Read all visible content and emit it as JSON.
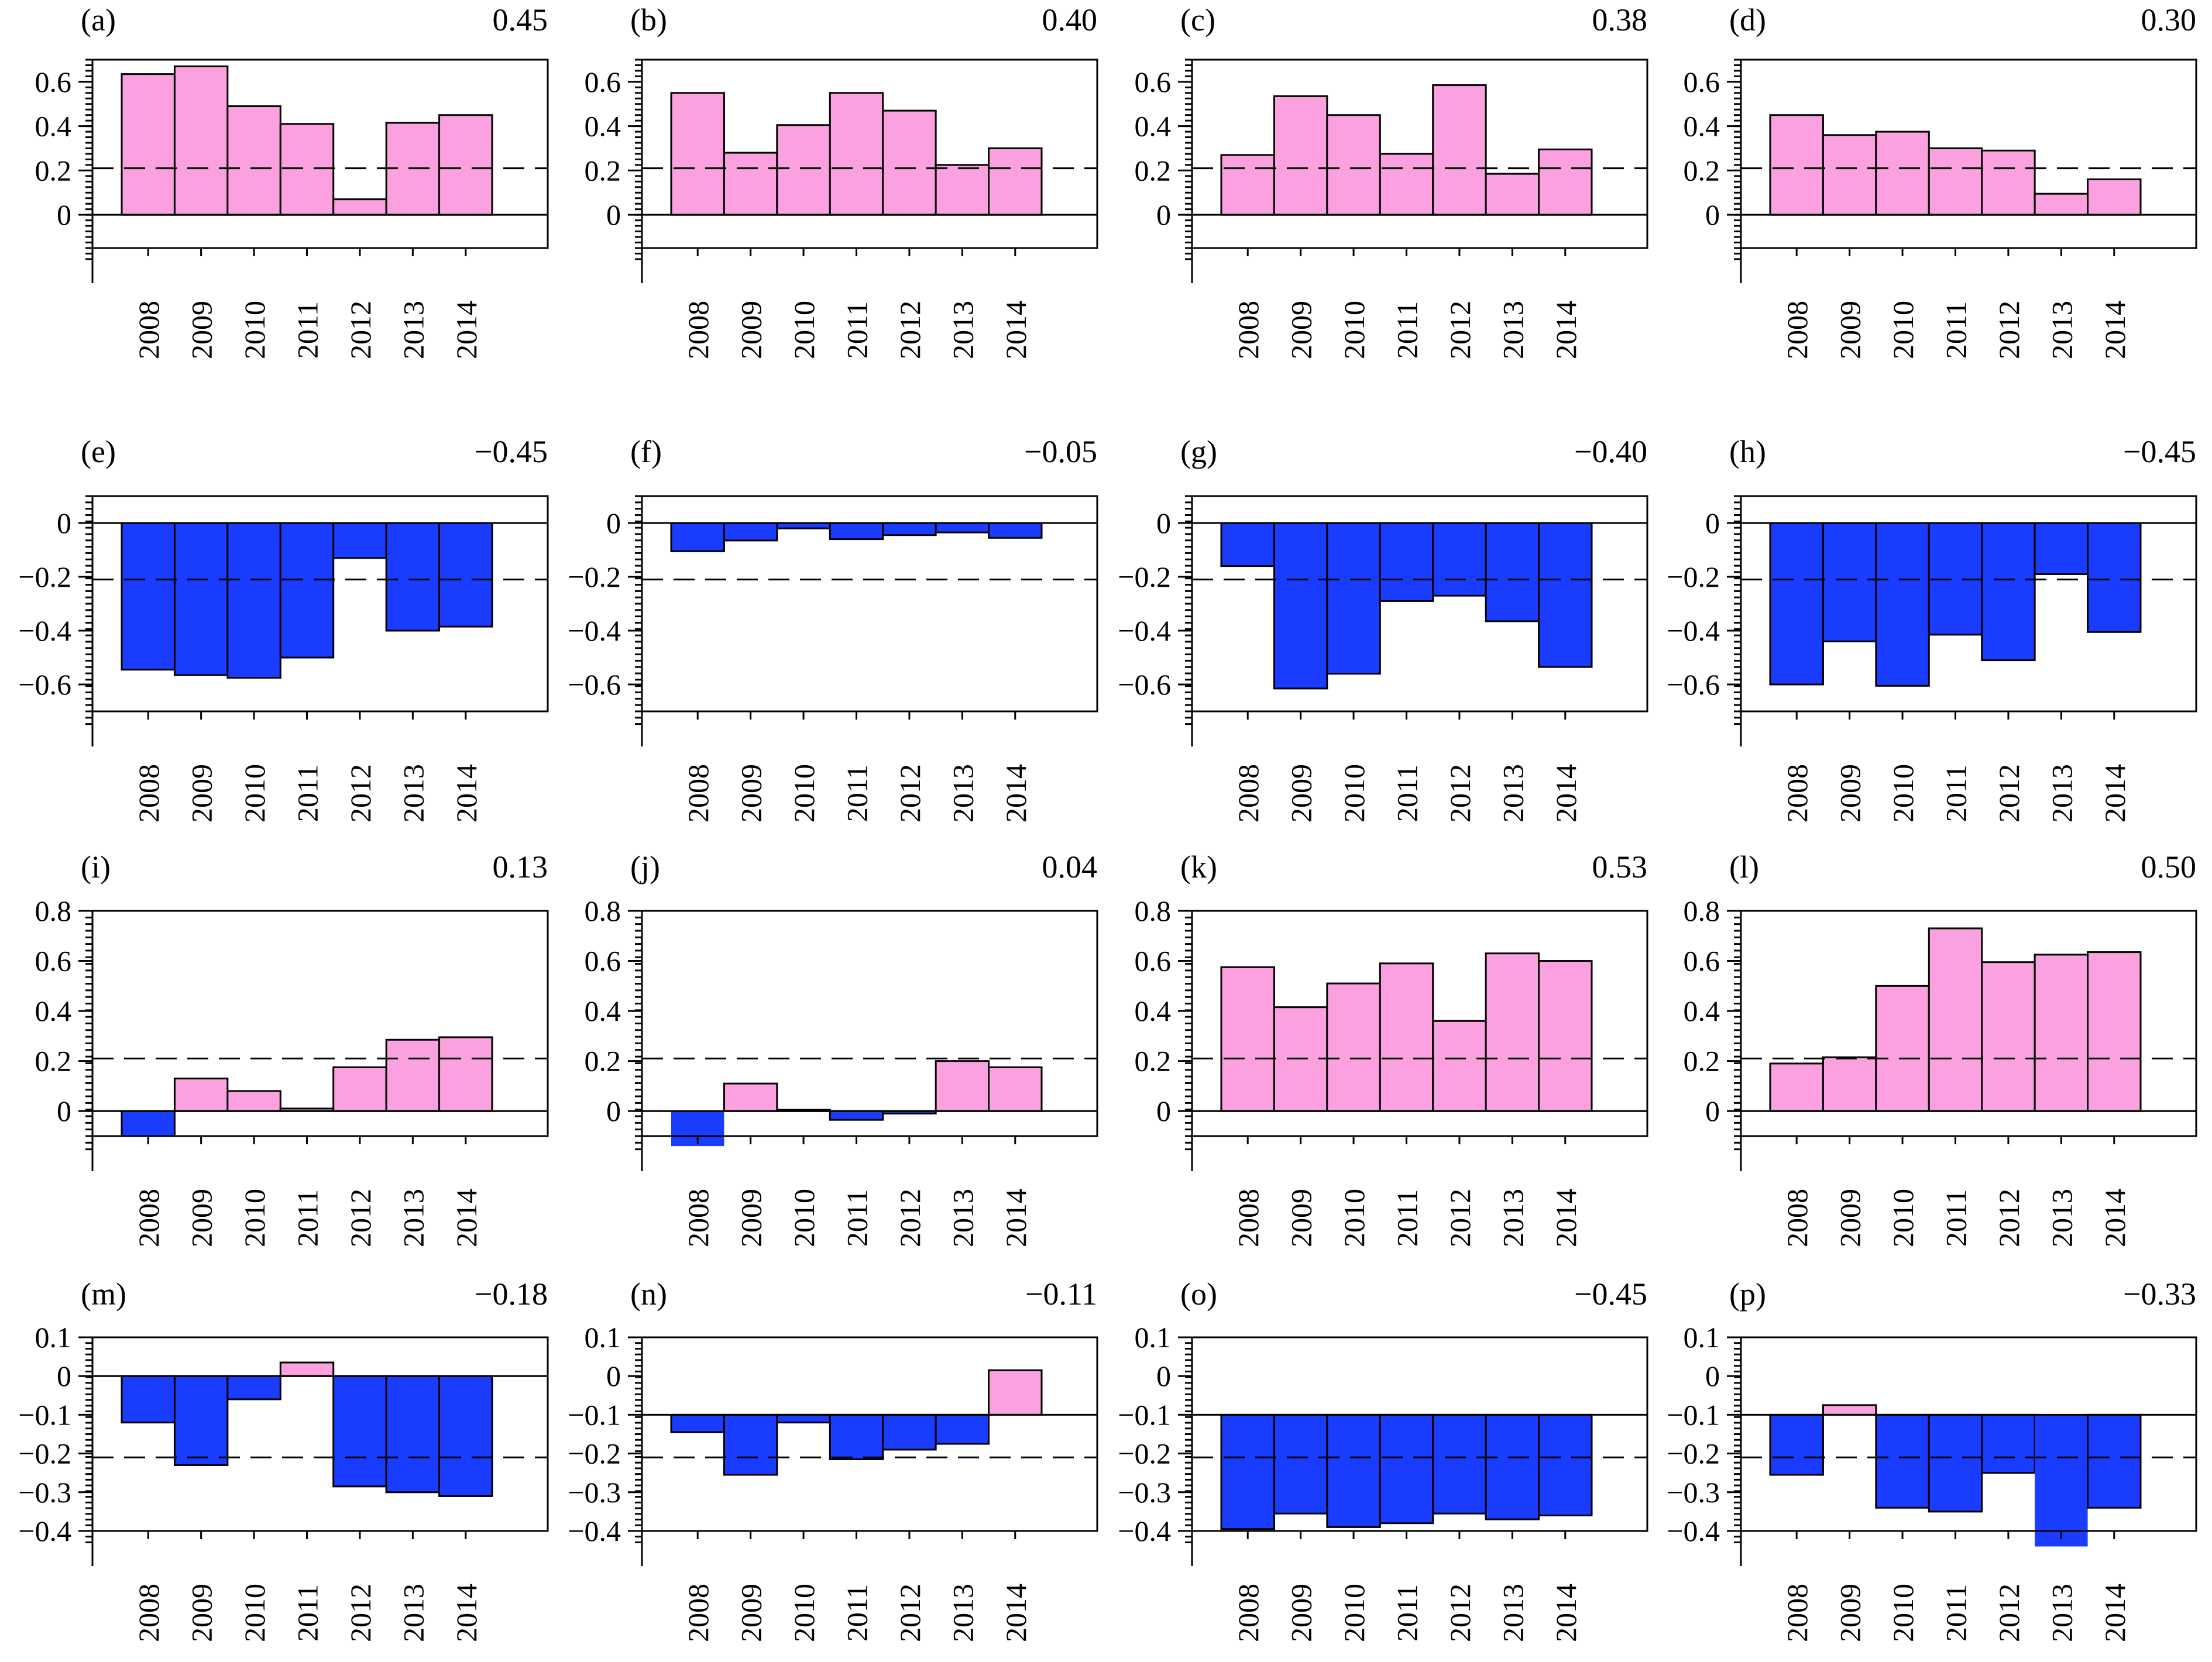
{
  "style": {
    "positive_color": "#fba1df",
    "negative_color": "#1a3cff",
    "axis_color": "#000000"
  },
  "chart_data": [
    {
      "type": "bar",
      "panel_label": "(a)",
      "value_label": "0.45",
      "categories": [
        "2008",
        "2009",
        "2010",
        "2011",
        "2012",
        "2013",
        "2014"
      ],
      "values": [
        0.635,
        0.67,
        0.49,
        0.41,
        0.07,
        0.415,
        0.45
      ],
      "ylim": [
        -0.15,
        0.7
      ],
      "yticks": [
        "0.6",
        "0.4",
        "0.2",
        "0"
      ],
      "ytick_values": [
        0.6,
        0.4,
        0.2,
        0
      ],
      "baseline": 0,
      "threshold": 0.21,
      "grid": false
    },
    {
      "type": "bar",
      "panel_label": "(b)",
      "value_label": "0.40",
      "categories": [
        "2008",
        "2009",
        "2010",
        "2011",
        "2012",
        "2013",
        "2014"
      ],
      "values": [
        0.55,
        0.28,
        0.405,
        0.55,
        0.47,
        0.225,
        0.3
      ],
      "ylim": [
        -0.15,
        0.7
      ],
      "yticks": [
        "0.6",
        "0.4",
        "0.2",
        "0"
      ],
      "ytick_values": [
        0.6,
        0.4,
        0.2,
        0
      ],
      "baseline": 0,
      "threshold": 0.21,
      "grid": false
    },
    {
      "type": "bar",
      "panel_label": "(c)",
      "value_label": "0.38",
      "categories": [
        "2008",
        "2009",
        "2010",
        "2011",
        "2012",
        "2013",
        "2014"
      ],
      "values": [
        0.27,
        0.535,
        0.45,
        0.275,
        0.585,
        0.185,
        0.295
      ],
      "ylim": [
        -0.15,
        0.7
      ],
      "yticks": [
        "0.6",
        "0.4",
        "0.2",
        "0"
      ],
      "ytick_values": [
        0.6,
        0.4,
        0.2,
        0
      ],
      "baseline": 0,
      "threshold": 0.21,
      "grid": false
    },
    {
      "type": "bar",
      "panel_label": "(d)",
      "value_label": "0.30",
      "categories": [
        "2008",
        "2009",
        "2010",
        "2011",
        "2012",
        "2013",
        "2014"
      ],
      "values": [
        0.45,
        0.36,
        0.375,
        0.3,
        0.29,
        0.095,
        0.16
      ],
      "ylim": [
        -0.15,
        0.7
      ],
      "yticks": [
        "0.6",
        "0.4",
        "0.2",
        "0"
      ],
      "ytick_values": [
        0.6,
        0.4,
        0.2,
        0
      ],
      "baseline": 0,
      "threshold": 0.21,
      "grid": false
    },
    {
      "type": "bar",
      "panel_label": "(e)",
      "value_label": "−0.45",
      "categories": [
        "2008",
        "2009",
        "2010",
        "2011",
        "2012",
        "2013",
        "2014"
      ],
      "values": [
        -0.545,
        -0.565,
        -0.575,
        -0.5,
        -0.13,
        -0.4,
        -0.385
      ],
      "ylim": [
        -0.7,
        0.1
      ],
      "yticks": [
        "0",
        "−0.2",
        "−0.4",
        "−0.6"
      ],
      "ytick_values": [
        0,
        -0.2,
        -0.4,
        -0.6
      ],
      "baseline": 0,
      "threshold": -0.21,
      "grid": false
    },
    {
      "type": "bar",
      "panel_label": "(f)",
      "value_label": "−0.05",
      "categories": [
        "2008",
        "2009",
        "2010",
        "2011",
        "2012",
        "2013",
        "2014"
      ],
      "values": [
        -0.105,
        -0.065,
        -0.02,
        -0.06,
        -0.045,
        -0.035,
        -0.055
      ],
      "ylim": [
        -0.7,
        0.1
      ],
      "yticks": [
        "0",
        "−0.2",
        "−0.4",
        "−0.6"
      ],
      "ytick_values": [
        0,
        -0.2,
        -0.4,
        -0.6
      ],
      "baseline": 0,
      "threshold": -0.21,
      "grid": false
    },
    {
      "type": "bar",
      "panel_label": "(g)",
      "value_label": "−0.40",
      "categories": [
        "2008",
        "2009",
        "2010",
        "2011",
        "2012",
        "2013",
        "2014"
      ],
      "values": [
        -0.16,
        -0.615,
        -0.56,
        -0.29,
        -0.27,
        -0.365,
        -0.535
      ],
      "ylim": [
        -0.7,
        0.1
      ],
      "yticks": [
        "0",
        "−0.2",
        "−0.4",
        "−0.6"
      ],
      "ytick_values": [
        0,
        -0.2,
        -0.4,
        -0.6
      ],
      "baseline": 0,
      "threshold": -0.21,
      "grid": false
    },
    {
      "type": "bar",
      "panel_label": "(h)",
      "value_label": "−0.45",
      "categories": [
        "2008",
        "2009",
        "2010",
        "2011",
        "2012",
        "2013",
        "2014"
      ],
      "values": [
        -0.6,
        -0.44,
        -0.605,
        -0.415,
        -0.51,
        -0.19,
        -0.405
      ],
      "ylim": [
        -0.7,
        0.1
      ],
      "yticks": [
        "0",
        "−0.2",
        "−0.4",
        "−0.6"
      ],
      "ytick_values": [
        0,
        -0.2,
        -0.4,
        -0.6
      ],
      "baseline": 0,
      "threshold": -0.21,
      "grid": false
    },
    {
      "type": "bar",
      "panel_label": "(i)",
      "value_label": "0.13",
      "categories": [
        "2008",
        "2009",
        "2010",
        "2011",
        "2012",
        "2013",
        "2014"
      ],
      "values": [
        -0.1,
        0.13,
        0.08,
        0.01,
        0.175,
        0.285,
        0.295
      ],
      "ylim": [
        -0.1,
        0.8
      ],
      "yticks": [
        "0.8",
        "0.6",
        "0.4",
        "0.2",
        "0"
      ],
      "ytick_values": [
        0.8,
        0.6,
        0.4,
        0.2,
        0
      ],
      "baseline": 0,
      "threshold": 0.21,
      "grid": false
    },
    {
      "type": "bar",
      "panel_label": "(j)",
      "value_label": "0.04",
      "categories": [
        "2008",
        "2009",
        "2010",
        "2011",
        "2012",
        "2013",
        "2014"
      ],
      "values": [
        -0.14,
        0.11,
        0.005,
        -0.035,
        -0.01,
        0.2,
        0.175
      ],
      "ylim": [
        -0.1,
        0.8
      ],
      "yticks": [
        "0.8",
        "0.6",
        "0.4",
        "0.2",
        "0"
      ],
      "ytick_values": [
        0.8,
        0.6,
        0.4,
        0.2,
        0
      ],
      "baseline": 0,
      "threshold": 0.21,
      "grid": false
    },
    {
      "type": "bar",
      "panel_label": "(k)",
      "value_label": "0.53",
      "categories": [
        "2008",
        "2009",
        "2010",
        "2011",
        "2012",
        "2013",
        "2014"
      ],
      "values": [
        0.575,
        0.415,
        0.51,
        0.59,
        0.36,
        0.63,
        0.6
      ],
      "ylim": [
        -0.1,
        0.8
      ],
      "yticks": [
        "0.8",
        "0.6",
        "0.4",
        "0.2",
        "0"
      ],
      "ytick_values": [
        0.8,
        0.6,
        0.4,
        0.2,
        0
      ],
      "baseline": 0,
      "threshold": 0.21,
      "grid": false
    },
    {
      "type": "bar",
      "panel_label": "(l)",
      "value_label": "0.50",
      "categories": [
        "2008",
        "2009",
        "2010",
        "2011",
        "2012",
        "2013",
        "2014"
      ],
      "values": [
        0.19,
        0.215,
        0.5,
        0.73,
        0.595,
        0.625,
        0.635
      ],
      "ylim": [
        -0.1,
        0.8
      ],
      "yticks": [
        "0.8",
        "0.6",
        "0.4",
        "0.2",
        "0"
      ],
      "ytick_values": [
        0.8,
        0.6,
        0.4,
        0.2,
        0
      ],
      "baseline": 0,
      "threshold": 0.21,
      "grid": false
    },
    {
      "type": "bar",
      "panel_label": "(m)",
      "value_label": "−0.18",
      "categories": [
        "2008",
        "2009",
        "2010",
        "2011",
        "2012",
        "2013",
        "2014"
      ],
      "values": [
        -0.12,
        -0.23,
        -0.06,
        0.035,
        -0.285,
        -0.3,
        -0.31
      ],
      "ylim": [
        -0.4,
        0.1
      ],
      "yticks": [
        "0.1",
        "0",
        "−0.1",
        "−0.2",
        "−0.3",
        "−0.4"
      ],
      "ytick_values": [
        0.1,
        0,
        -0.1,
        -0.2,
        -0.3,
        -0.4
      ],
      "baseline": 0,
      "threshold": -0.21,
      "grid": false
    },
    {
      "type": "bar",
      "panel_label": "(n)",
      "value_label": "−0.11",
      "categories": [
        "2008",
        "2009",
        "2010",
        "2011",
        "2012",
        "2013",
        "2014"
      ],
      "values": [
        -0.145,
        -0.255,
        -0.12,
        -0.215,
        -0.19,
        -0.175,
        0.015
      ],
      "ylim": [
        -0.4,
        0.1
      ],
      "yticks": [
        "0.1",
        "0",
        "−0.1",
        "−0.2",
        "−0.3",
        "−0.4"
      ],
      "ytick_values": [
        0.1,
        0,
        -0.1,
        -0.2,
        -0.3,
        -0.4
      ],
      "baseline": -0.1,
      "threshold": -0.21,
      "grid": false
    },
    {
      "type": "bar",
      "panel_label": "(o)",
      "value_label": "−0.45",
      "categories": [
        "2008",
        "2009",
        "2010",
        "2011",
        "2012",
        "2013",
        "2014"
      ],
      "values": [
        -0.395,
        -0.355,
        -0.39,
        -0.38,
        -0.355,
        -0.37,
        -0.36
      ],
      "ylim": [
        -0.4,
        0.1
      ],
      "yticks": [
        "0.1",
        "0",
        "−0.1",
        "−0.2",
        "−0.3",
        "−0.4"
      ],
      "ytick_values": [
        0.1,
        0,
        -0.1,
        -0.2,
        -0.3,
        -0.4
      ],
      "baseline": -0.1,
      "threshold": -0.21,
      "grid": false
    },
    {
      "type": "bar",
      "panel_label": "(p)",
      "value_label": "−0.33",
      "categories": [
        "2008",
        "2009",
        "2010",
        "2011",
        "2012",
        "2013",
        "2014"
      ],
      "values": [
        -0.255,
        -0.075,
        -0.34,
        -0.35,
        -0.25,
        -0.44,
        -0.34
      ],
      "ylim": [
        -0.4,
        0.1
      ],
      "yticks": [
        "0.1",
        "0",
        "−0.1",
        "−0.2",
        "−0.3",
        "−0.4"
      ],
      "ytick_values": [
        0.1,
        0,
        -0.1,
        -0.2,
        -0.3,
        -0.4
      ],
      "baseline": -0.1,
      "threshold": -0.21,
      "grid": false
    }
  ]
}
